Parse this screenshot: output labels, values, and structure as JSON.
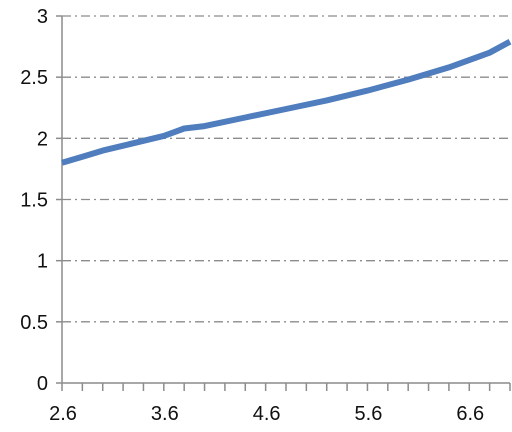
{
  "chart_data": {
    "type": "line",
    "title": "",
    "xlabel": "",
    "ylabel": "",
    "xlim": [
      2.6,
      7.0
    ],
    "ylim": [
      0,
      3
    ],
    "x_ticks": [
      "2.6",
      "3.6",
      "4.6",
      "5.6",
      "6.6"
    ],
    "x_tick_values": [
      2.6,
      3.6,
      4.6,
      5.6,
      6.6
    ],
    "x_minor_step": 0.2,
    "y_ticks": [
      "0",
      "0.5",
      "1",
      "1.5",
      "2",
      "2.5",
      "3"
    ],
    "y_tick_values": [
      0,
      0.5,
      1,
      1.5,
      2,
      2.5,
      3
    ],
    "grid": "horizontal dash-dot",
    "legend": "none",
    "series": [
      {
        "color": "#4F7DBD",
        "x": [
          2.6,
          2.8,
          3.0,
          3.2,
          3.4,
          3.6,
          3.8,
          4.0,
          4.4,
          4.8,
          5.2,
          5.6,
          6.0,
          6.4,
          6.8,
          7.0
        ],
        "y": [
          1.8,
          1.85,
          1.9,
          1.94,
          1.98,
          2.02,
          2.08,
          2.1,
          2.17,
          2.24,
          2.31,
          2.39,
          2.48,
          2.58,
          2.7,
          2.79
        ]
      }
    ]
  },
  "colors": {
    "line": "#4F7DBD",
    "grid": "#8c8c8c",
    "axis": "#8c8c8c",
    "text": "#111111"
  }
}
